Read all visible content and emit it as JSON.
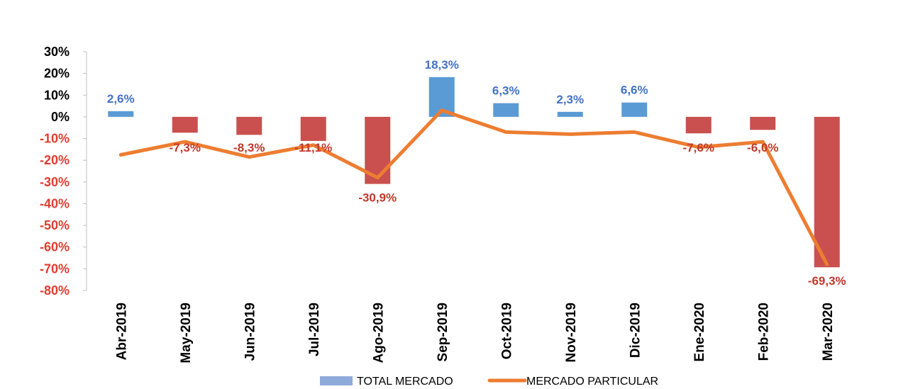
{
  "chart_data": {
    "type": "bar",
    "categories": [
      "Abr-2019",
      "May-2019",
      "Jun-2019",
      "Jul-2019",
      "Ago-2019",
      "Sep-2019",
      "Oct-2019",
      "Nov-2019",
      "Dic-2019",
      "Ene-2020",
      "Feb-2020",
      "Mar-2020"
    ],
    "series": [
      {
        "name": "TOTAL MERCADO",
        "type": "bar",
        "values": [
          2.6,
          -7.3,
          -8.3,
          -11.1,
          -30.9,
          18.3,
          6.3,
          2.3,
          6.6,
          -7.6,
          -6.0,
          -69.3
        ],
        "labels": [
          "2,6%",
          "-7,3%",
          "-8,3%",
          "-11,1%",
          "-30,9%",
          "18,3%",
          "6,3%",
          "2,3%",
          "6,6%",
          "-7,6%",
          "-6,0%",
          "-69,3%"
        ],
        "positive_color": "#5b9bd5",
        "negative_color": "#c9504e"
      },
      {
        "name": "MERCADO PARTICULAR",
        "type": "line",
        "values": [
          -17.5,
          -11.5,
          -18.5,
          -13,
          -28,
          3,
          -7,
          -8,
          -7,
          -14,
          -11.5,
          -68
        ],
        "color": "#ed7d31"
      }
    ],
    "ylim": [
      -80,
      30
    ],
    "yticks": [
      30,
      20,
      10,
      0,
      -10,
      -20,
      -30,
      -40,
      -50,
      -60,
      -70,
      -80
    ],
    "ytick_labels": [
      "30%",
      "20%",
      "10%",
      "0%",
      "-10%",
      "-20%",
      "-30%",
      "-40%",
      "-50%",
      "-60%",
      "-70%",
      "-80%"
    ],
    "positive_tick_color": "#000000",
    "negative_tick_color": "#e03c31",
    "positive_label_color": "#4472c4",
    "negative_label_color": "#c0392b",
    "legend_position": "bottom",
    "legend_bar_color": "#8eaadb",
    "grid": false
  }
}
